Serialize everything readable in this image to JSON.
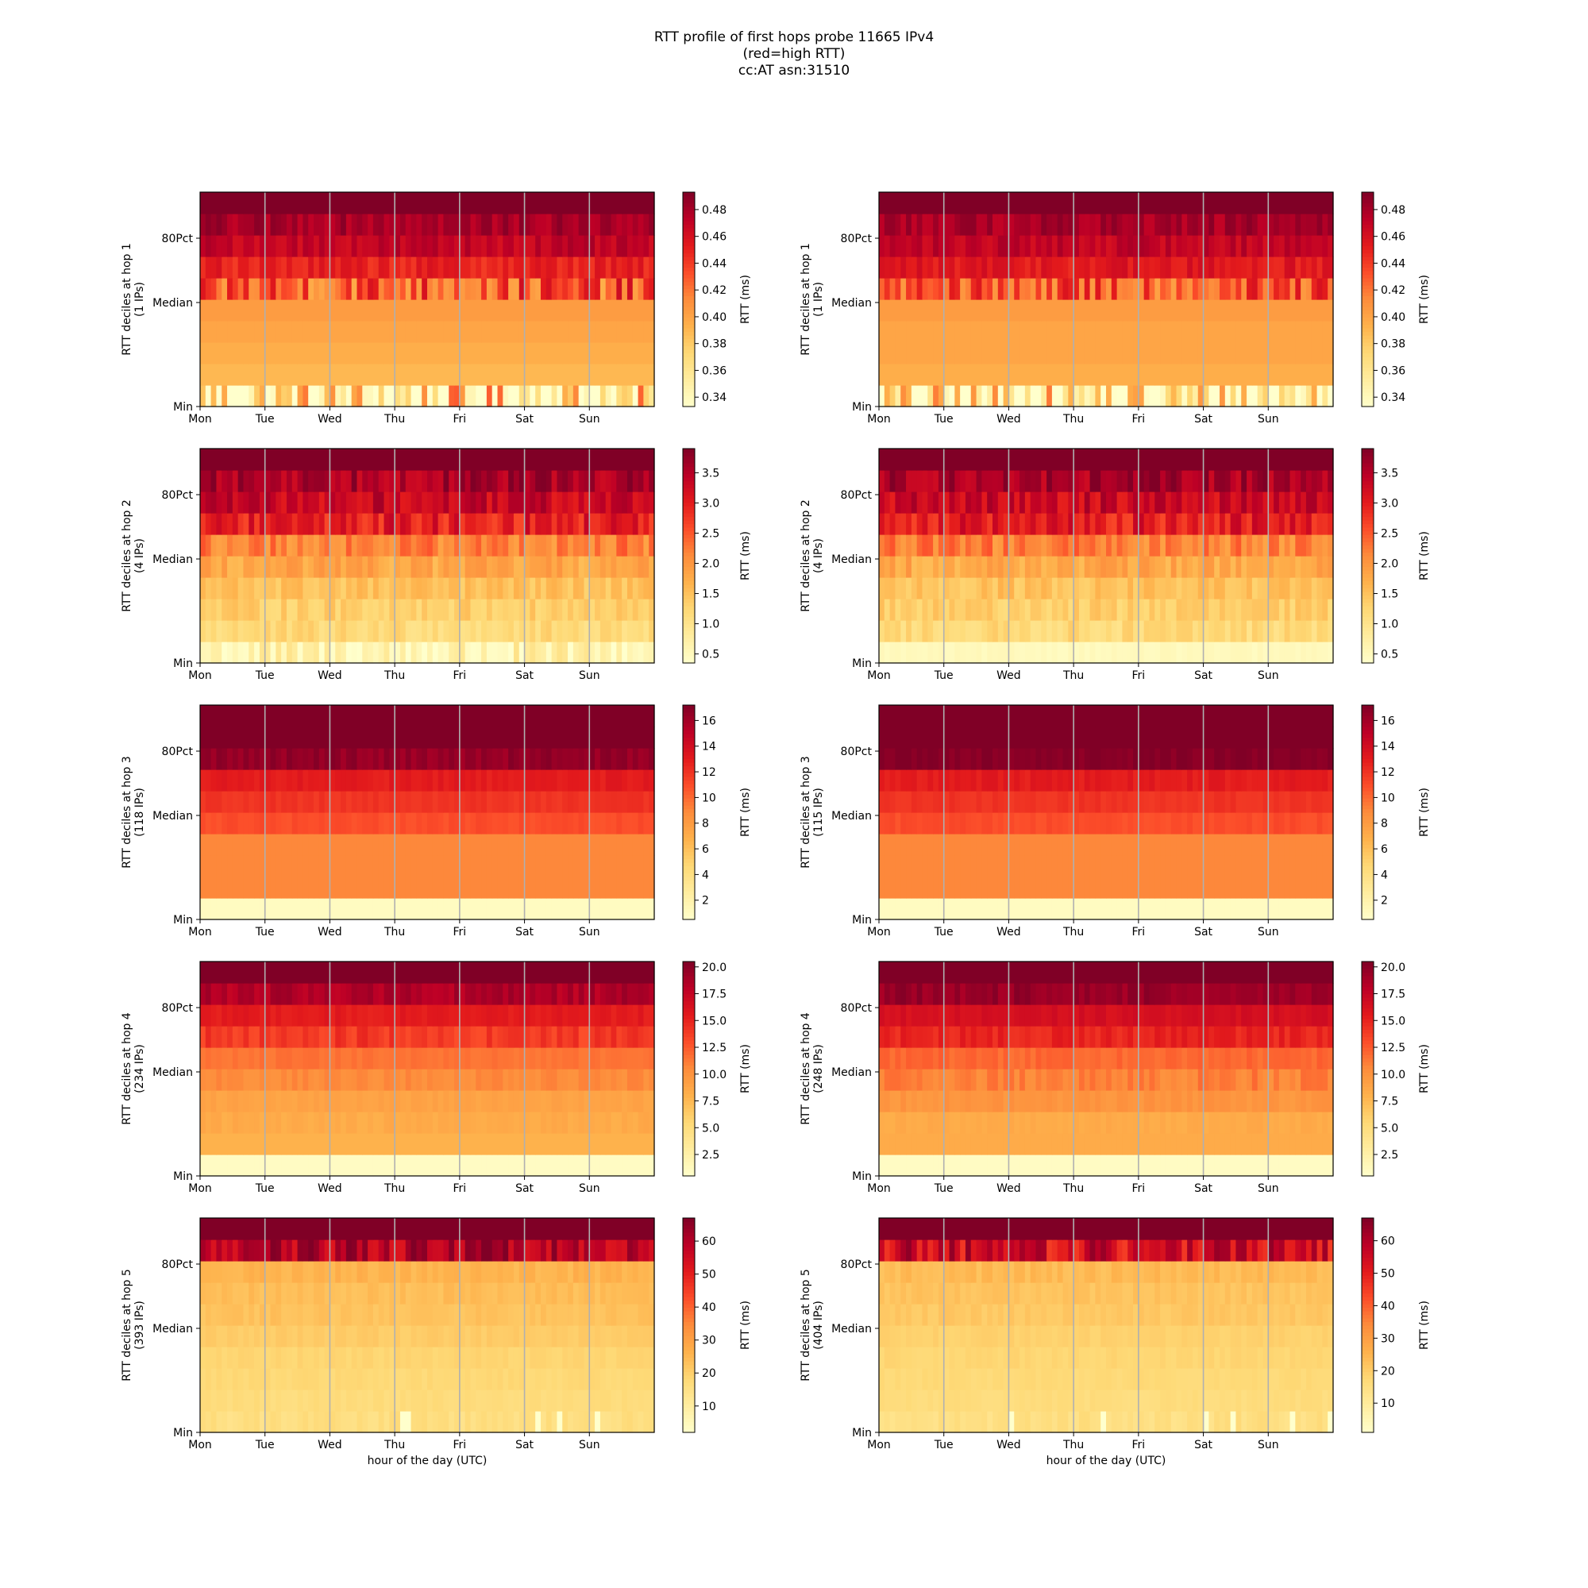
{
  "figure": {
    "title_lines": [
      "RTT profile of first hops probe 11665 IPv4",
      "(red=high RTT)",
      "cc:AT asn:31510"
    ],
    "colormap": [
      "#ffffcc",
      "#ffeda0",
      "#fed976",
      "#feb24c",
      "#fd8d3c",
      "#fc4e2a",
      "#e31a1c",
      "#bd0026",
      "#800026"
    ],
    "day_labels": [
      "Mon",
      "Tue",
      "Wed",
      "Thu",
      "Fri",
      "Sat",
      "Sun"
    ],
    "y_tick_labels": [
      "80Pct",
      "Median",
      "Min"
    ],
    "colorbar_label": "RTT (ms)",
    "xlabel": "hour of the day (UTC)"
  },
  "chart_data": [
    {
      "type": "heatmap",
      "hop": 1,
      "ylabel": [
        "RTT deciles at hop 1",
        "(1 IPs)"
      ],
      "cb_ticks": [
        "0.34",
        "0.36",
        "0.38",
        "0.40",
        "0.42",
        "0.44",
        "0.46",
        "0.48"
      ],
      "clim": [
        0.333,
        0.493
      ],
      "deciles": [
        0.35,
        0.39,
        0.395,
        0.4,
        0.405,
        0.43,
        0.45,
        0.47,
        0.48,
        0.5
      ],
      "noise": [
        0.08,
        0.0,
        0.0,
        0.0,
        0.0,
        0.035,
        0.01,
        0.01,
        0.01,
        0.0
      ],
      "xlabel": ""
    },
    {
      "type": "heatmap",
      "hop": 1,
      "ylabel": [
        "RTT deciles at hop 1",
        "(1 IPs)"
      ],
      "cb_ticks": [
        "0.34",
        "0.36",
        "0.38",
        "0.40",
        "0.42",
        "0.44",
        "0.46",
        "0.48"
      ],
      "clim": [
        0.333,
        0.493
      ],
      "deciles": [
        0.35,
        0.395,
        0.4,
        0.4,
        0.405,
        0.43,
        0.455,
        0.47,
        0.48,
        0.5
      ],
      "noise": [
        0.07,
        0.0,
        0.0,
        0.0,
        0.0,
        0.03,
        0.01,
        0.01,
        0.01,
        0.0
      ],
      "xlabel": ""
    },
    {
      "type": "heatmap",
      "hop": 2,
      "ylabel": [
        "RTT deciles at hop 2",
        "(4 IPs)"
      ],
      "cb_ticks": [
        "0.5",
        "1.0",
        "1.5",
        "2.0",
        "2.5",
        "3.0",
        "3.5"
      ],
      "clim": [
        0.35,
        3.9
      ],
      "deciles": [
        0.6,
        1.2,
        1.35,
        1.5,
        1.8,
        2.2,
        3.0,
        3.3,
        3.6,
        4.0
      ],
      "noise": [
        0.45,
        0.2,
        0.2,
        0.2,
        0.25,
        0.35,
        0.4,
        0.35,
        0.35,
        0.1
      ],
      "xlabel": ""
    },
    {
      "type": "heatmap",
      "hop": 2,
      "ylabel": [
        "RTT deciles at hop 2",
        "(4 IPs)"
      ],
      "cb_ticks": [
        "0.5",
        "1.0",
        "1.5",
        "2.0",
        "2.5",
        "3.0",
        "3.5"
      ],
      "clim": [
        0.35,
        3.9
      ],
      "deciles": [
        0.5,
        1.2,
        1.35,
        1.5,
        1.8,
        2.2,
        3.0,
        3.3,
        3.6,
        4.0
      ],
      "noise": [
        0.05,
        0.2,
        0.2,
        0.2,
        0.25,
        0.35,
        0.4,
        0.35,
        0.35,
        0.1
      ],
      "xlabel": ""
    },
    {
      "type": "heatmap",
      "hop": 3,
      "ylabel": [
        "RTT deciles at hop 3",
        "(118 IPs)"
      ],
      "cb_ticks": [
        "2",
        "4",
        "6",
        "8",
        "10",
        "12",
        "14",
        "16"
      ],
      "clim": [
        0.5,
        17.2
      ],
      "deciles": [
        1.0,
        9.0,
        9.0,
        9.0,
        11.0,
        12.0,
        13.0,
        16.5,
        17.5,
        18.0
      ],
      "noise": [
        0.0,
        0.0,
        0.0,
        0.0,
        0.3,
        0.3,
        0.4,
        0.6,
        0.0,
        0.0
      ],
      "xlabel": ""
    },
    {
      "type": "heatmap",
      "hop": 3,
      "ylabel": [
        "RTT deciles at hop 3",
        "(115 IPs)"
      ],
      "cb_ticks": [
        "2",
        "4",
        "6",
        "8",
        "10",
        "12",
        "14",
        "16"
      ],
      "clim": [
        0.5,
        17.2
      ],
      "deciles": [
        1.0,
        9.0,
        9.0,
        9.0,
        11.0,
        12.0,
        13.0,
        17.0,
        17.5,
        18.0
      ],
      "noise": [
        0.0,
        0.0,
        0.0,
        0.0,
        0.3,
        0.3,
        0.4,
        0.4,
        0.0,
        0.0
      ],
      "xlabel": ""
    },
    {
      "type": "heatmap",
      "hop": 4,
      "ylabel": [
        "RTT deciles at hop 4",
        "(234 IPs)"
      ],
      "cb_ticks": [
        "2.5",
        "5.0",
        "7.5",
        "10.0",
        "12.5",
        "15.0",
        "17.5",
        "20.0"
      ],
      "clim": [
        0.5,
        20.5
      ],
      "deciles": [
        1.0,
        8.0,
        8.5,
        9.0,
        10.5,
        11.5,
        14.0,
        15.5,
        18.5,
        21.0
      ],
      "noise": [
        0.0,
        0.0,
        0.4,
        0.3,
        0.5,
        0.3,
        1.0,
        0.5,
        1.0,
        0.0
      ],
      "xlabel": ""
    },
    {
      "type": "heatmap",
      "hop": 4,
      "ylabel": [
        "RTT deciles at hop 4",
        "(248 IPs)"
      ],
      "cb_ticks": [
        "2.5",
        "5.0",
        "7.5",
        "10.0",
        "12.5",
        "15.0",
        "17.5",
        "20.0"
      ],
      "clim": [
        0.5,
        20.5
      ],
      "deciles": [
        1.0,
        8.5,
        8.5,
        10.0,
        11.0,
        12.0,
        15.0,
        16.5,
        19.5,
        21.0
      ],
      "noise": [
        0.0,
        0.0,
        0.3,
        0.5,
        1.0,
        0.5,
        0.8,
        0.5,
        0.8,
        0.0
      ],
      "xlabel": ""
    },
    {
      "type": "heatmap",
      "hop": 5,
      "ylabel": [
        "RTT deciles at hop 5",
        "(393 IPs)"
      ],
      "cb_ticks": [
        "10",
        "20",
        "30",
        "40",
        "50",
        "60"
      ],
      "clim": [
        2,
        67
      ],
      "deciles": [
        16,
        17,
        18,
        19,
        21,
        23,
        24,
        26,
        60,
        70
      ],
      "noise": [
        2,
        1,
        1,
        1,
        1,
        1.5,
        1.5,
        2,
        8,
        0
      ],
      "xlabel": "hour of the day (UTC)"
    },
    {
      "type": "heatmap",
      "hop": 5,
      "ylabel": [
        "RTT deciles at hop 5",
        "(404 IPs)"
      ],
      "cb_ticks": [
        "10",
        "20",
        "30",
        "40",
        "50",
        "60"
      ],
      "clim": [
        1,
        67
      ],
      "deciles": [
        15,
        16,
        17,
        18,
        19,
        21,
        22,
        24,
        55,
        70
      ],
      "noise": [
        2,
        1,
        1,
        1,
        1,
        1.5,
        1.5,
        2,
        10,
        0
      ],
      "xlabel": "hour of the day (UTC)"
    }
  ]
}
